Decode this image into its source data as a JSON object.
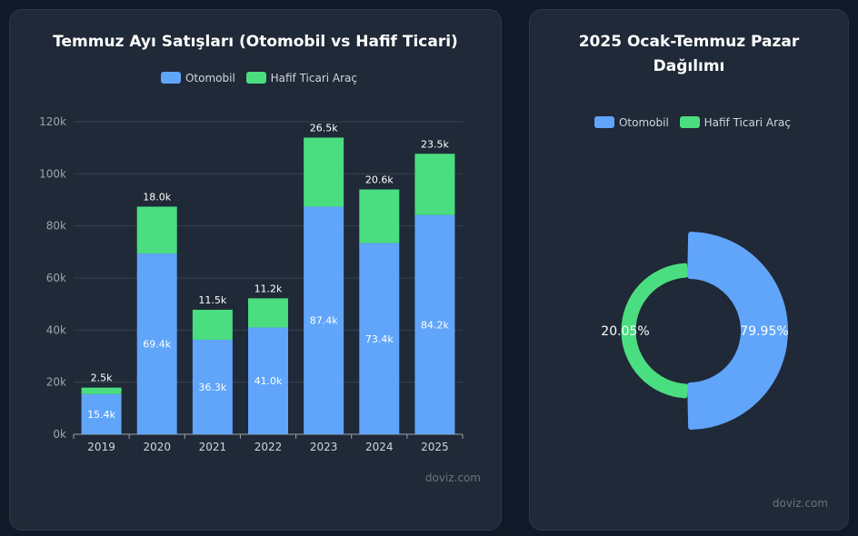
{
  "colors": {
    "otomobil": "#60a5fa",
    "hafif": "#4ade80"
  },
  "watermark": "doviz.com",
  "chart_data": [
    {
      "type": "bar",
      "stacked": true,
      "title": "Temmuz Ayı Satışları (Otomobil vs Hafif Ticari)",
      "categories": [
        "2019",
        "2020",
        "2021",
        "2022",
        "2023",
        "2024",
        "2025"
      ],
      "series": [
        {
          "name": "Otomobil",
          "values": [
            15.4,
            69.4,
            36.3,
            41.0,
            87.4,
            73.4,
            84.2
          ],
          "labels": [
            "15.4k",
            "69.4k",
            "36.3k",
            "41.0k",
            "87.4k",
            "73.4k",
            "84.2k"
          ]
        },
        {
          "name": "Hafif Ticari Araç",
          "values": [
            2.5,
            18.0,
            11.5,
            11.2,
            26.5,
            20.6,
            23.5
          ],
          "labels": [
            "2.5k",
            "18.0k",
            "11.5k",
            "11.2k",
            "26.5k",
            "20.6k",
            "23.5k"
          ]
        }
      ],
      "ylim": [
        0,
        120
      ],
      "yticks": [
        "0k",
        "20k",
        "40k",
        "60k",
        "80k",
        "100k",
        "120k"
      ],
      "grid": true,
      "legend": "top"
    },
    {
      "type": "pie",
      "title": "2025 Ocak-Temmuz Pazar Dağılımı",
      "slices": [
        {
          "name": "Otomobil",
          "value": 79.95,
          "label": "79.95%"
        },
        {
          "name": "Hafif Ticari Araç",
          "value": 20.05,
          "label": "20.05%"
        }
      ],
      "legend": "top"
    }
  ]
}
